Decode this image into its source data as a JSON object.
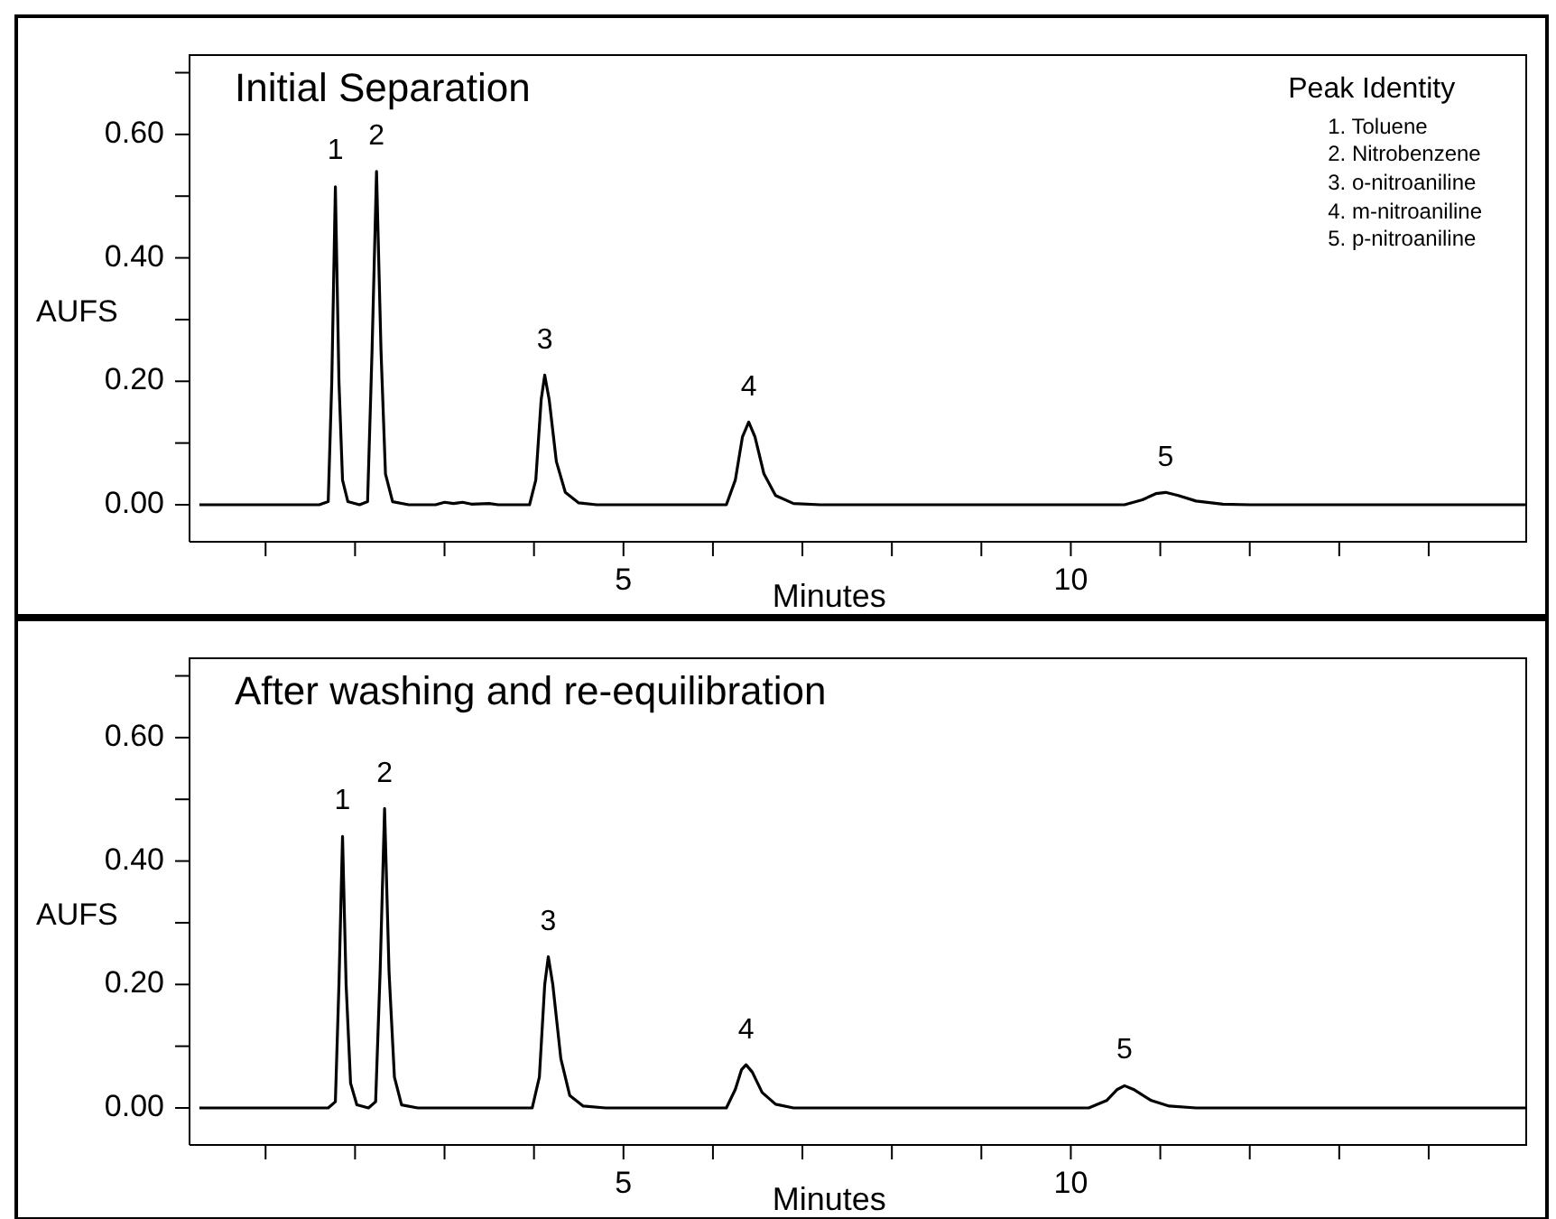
{
  "chart_data": [
    {
      "type": "line",
      "title": "Initial Separation",
      "xlabel": "Minutes",
      "ylabel": "AUFS",
      "line_style": "solid",
      "marker": "none",
      "x": [
        0.26,
        1.6,
        1.7,
        1.74,
        1.78,
        1.82,
        1.86,
        1.92,
        2.05,
        2.14,
        2.19,
        2.24,
        2.29,
        2.34,
        2.42,
        2.6,
        2.9,
        3.0,
        3.1,
        3.2,
        3.3,
        3.5,
        3.6,
        3.95,
        4.02,
        4.08,
        4.12,
        4.17,
        4.25,
        4.35,
        4.5,
        4.7,
        6.15,
        6.25,
        6.33,
        6.4,
        6.47,
        6.57,
        6.7,
        6.9,
        7.2,
        10.6,
        10.8,
        10.95,
        11.06,
        11.2,
        11.4,
        11.7,
        12,
        15.1
      ],
      "series": [
        {
          "color": "#000000",
          "values": [
            0,
            0,
            0.005,
            0.2,
            0.515,
            0.2,
            0.04,
            0.005,
            0,
            0.005,
            0.25,
            0.54,
            0.25,
            0.05,
            0.005,
            0,
            0,
            0.004,
            0.002,
            0.004,
            0.001,
            0.002,
            0,
            0,
            0.04,
            0.17,
            0.21,
            0.17,
            0.07,
            0.02,
            0.003,
            0,
            0,
            0.04,
            0.11,
            0.134,
            0.11,
            0.05,
            0.015,
            0.002,
            0,
            0,
            0.008,
            0.018,
            0.02,
            0.015,
            0.006,
            0.001,
            0,
            0
          ]
        }
      ],
      "xlim": [
        0.15,
        15.1
      ],
      "xticks": [
        {
          "value": 1,
          "label": null
        },
        {
          "value": 2,
          "label": null
        },
        {
          "value": 3,
          "label": null
        },
        {
          "value": 4,
          "label": null
        },
        {
          "value": 5,
          "label": "5"
        },
        {
          "value": 6,
          "label": null
        },
        {
          "value": 7,
          "label": null
        },
        {
          "value": 8,
          "label": null
        },
        {
          "value": 9,
          "label": null
        },
        {
          "value": 10,
          "label": "10"
        },
        {
          "value": 11,
          "label": null
        },
        {
          "value": 12,
          "label": null
        },
        {
          "value": 13,
          "label": null
        },
        {
          "value": 14,
          "label": null
        }
      ],
      "ylim": [
        -0.06,
        0.73
      ],
      "yticks": [
        {
          "value": 0,
          "label": "0.00"
        },
        {
          "value": 0.1,
          "label": null
        },
        {
          "value": 0.2,
          "label": "0.20"
        },
        {
          "value": 0.3,
          "label": null
        },
        {
          "value": 0.4,
          "label": "0.40"
        },
        {
          "value": 0.5,
          "label": null
        },
        {
          "value": 0.6,
          "label": "0.60"
        },
        {
          "value": 0.7,
          "label": null
        }
      ],
      "annotations": [
        {
          "text": "1",
          "x": 1.78,
          "y": 0.515
        },
        {
          "text": "2",
          "x": 2.24,
          "y": 0.54
        },
        {
          "text": "3",
          "x": 4.12,
          "y": 0.21
        },
        {
          "text": "4",
          "x": 6.4,
          "y": 0.134
        },
        {
          "text": "5",
          "x": 11.06,
          "y": 0.02
        },
        "Peak Identity",
        "1. Toluene",
        "2. Nitrobenzene",
        "3. o-nitroaniline",
        "4. m-nitroaniline",
        "5. p-nitroaniline"
      ]
    },
    {
      "type": "line",
      "title": "After washing and re-equilibration",
      "xlabel": "Minutes",
      "ylabel": "AUFS",
      "line_style": "solid",
      "marker": "none",
      "x": [
        0.26,
        1.7,
        1.78,
        1.82,
        1.86,
        1.9,
        1.95,
        2.02,
        2.15,
        2.23,
        2.28,
        2.33,
        2.38,
        2.44,
        2.52,
        2.7,
        3.98,
        4.06,
        4.12,
        4.16,
        4.21,
        4.3,
        4.4,
        4.55,
        4.8,
        6.15,
        6.25,
        6.32,
        6.37,
        6.44,
        6.55,
        6.7,
        6.9,
        10.2,
        10.4,
        10.52,
        10.6,
        10.7,
        10.9,
        11.1,
        11.4,
        15.1
      ],
      "series": [
        {
          "color": "#000000",
          "values": [
            0,
            0,
            0.01,
            0.2,
            0.44,
            0.2,
            0.04,
            0.005,
            0,
            0.01,
            0.22,
            0.485,
            0.22,
            0.05,
            0.005,
            0,
            0,
            0.05,
            0.2,
            0.245,
            0.2,
            0.08,
            0.02,
            0.003,
            0,
            0,
            0.03,
            0.062,
            0.07,
            0.058,
            0.025,
            0.006,
            0,
            0,
            0.012,
            0.03,
            0.036,
            0.03,
            0.012,
            0.003,
            0,
            0
          ]
        }
      ],
      "xlim": [
        0.15,
        15.1
      ],
      "xticks": [
        {
          "value": 1,
          "label": null
        },
        {
          "value": 2,
          "label": null
        },
        {
          "value": 3,
          "label": null
        },
        {
          "value": 4,
          "label": null
        },
        {
          "value": 5,
          "label": "5"
        },
        {
          "value": 6,
          "label": null
        },
        {
          "value": 7,
          "label": null
        },
        {
          "value": 8,
          "label": null
        },
        {
          "value": 9,
          "label": null
        },
        {
          "value": 10,
          "label": "10"
        },
        {
          "value": 11,
          "label": null
        },
        {
          "value": 12,
          "label": null
        },
        {
          "value": 13,
          "label": null
        },
        {
          "value": 14,
          "label": null
        }
      ],
      "ylim": [
        -0.06,
        0.73
      ],
      "yticks": [
        {
          "value": 0,
          "label": "0.00"
        },
        {
          "value": 0.1,
          "label": null
        },
        {
          "value": 0.2,
          "label": "0.20"
        },
        {
          "value": 0.3,
          "label": null
        },
        {
          "value": 0.4,
          "label": "0.40"
        },
        {
          "value": 0.5,
          "label": null
        },
        {
          "value": 0.6,
          "label": "0.60"
        },
        {
          "value": 0.7,
          "label": null
        }
      ],
      "annotations": [
        {
          "text": "1",
          "x": 1.86,
          "y": 0.44
        },
        {
          "text": "2",
          "x": 2.33,
          "y": 0.485
        },
        {
          "text": "3",
          "x": 4.16,
          "y": 0.245
        },
        {
          "text": "4",
          "x": 6.37,
          "y": 0.07
        },
        {
          "text": "5",
          "x": 10.6,
          "y": 0.036
        }
      ]
    }
  ]
}
